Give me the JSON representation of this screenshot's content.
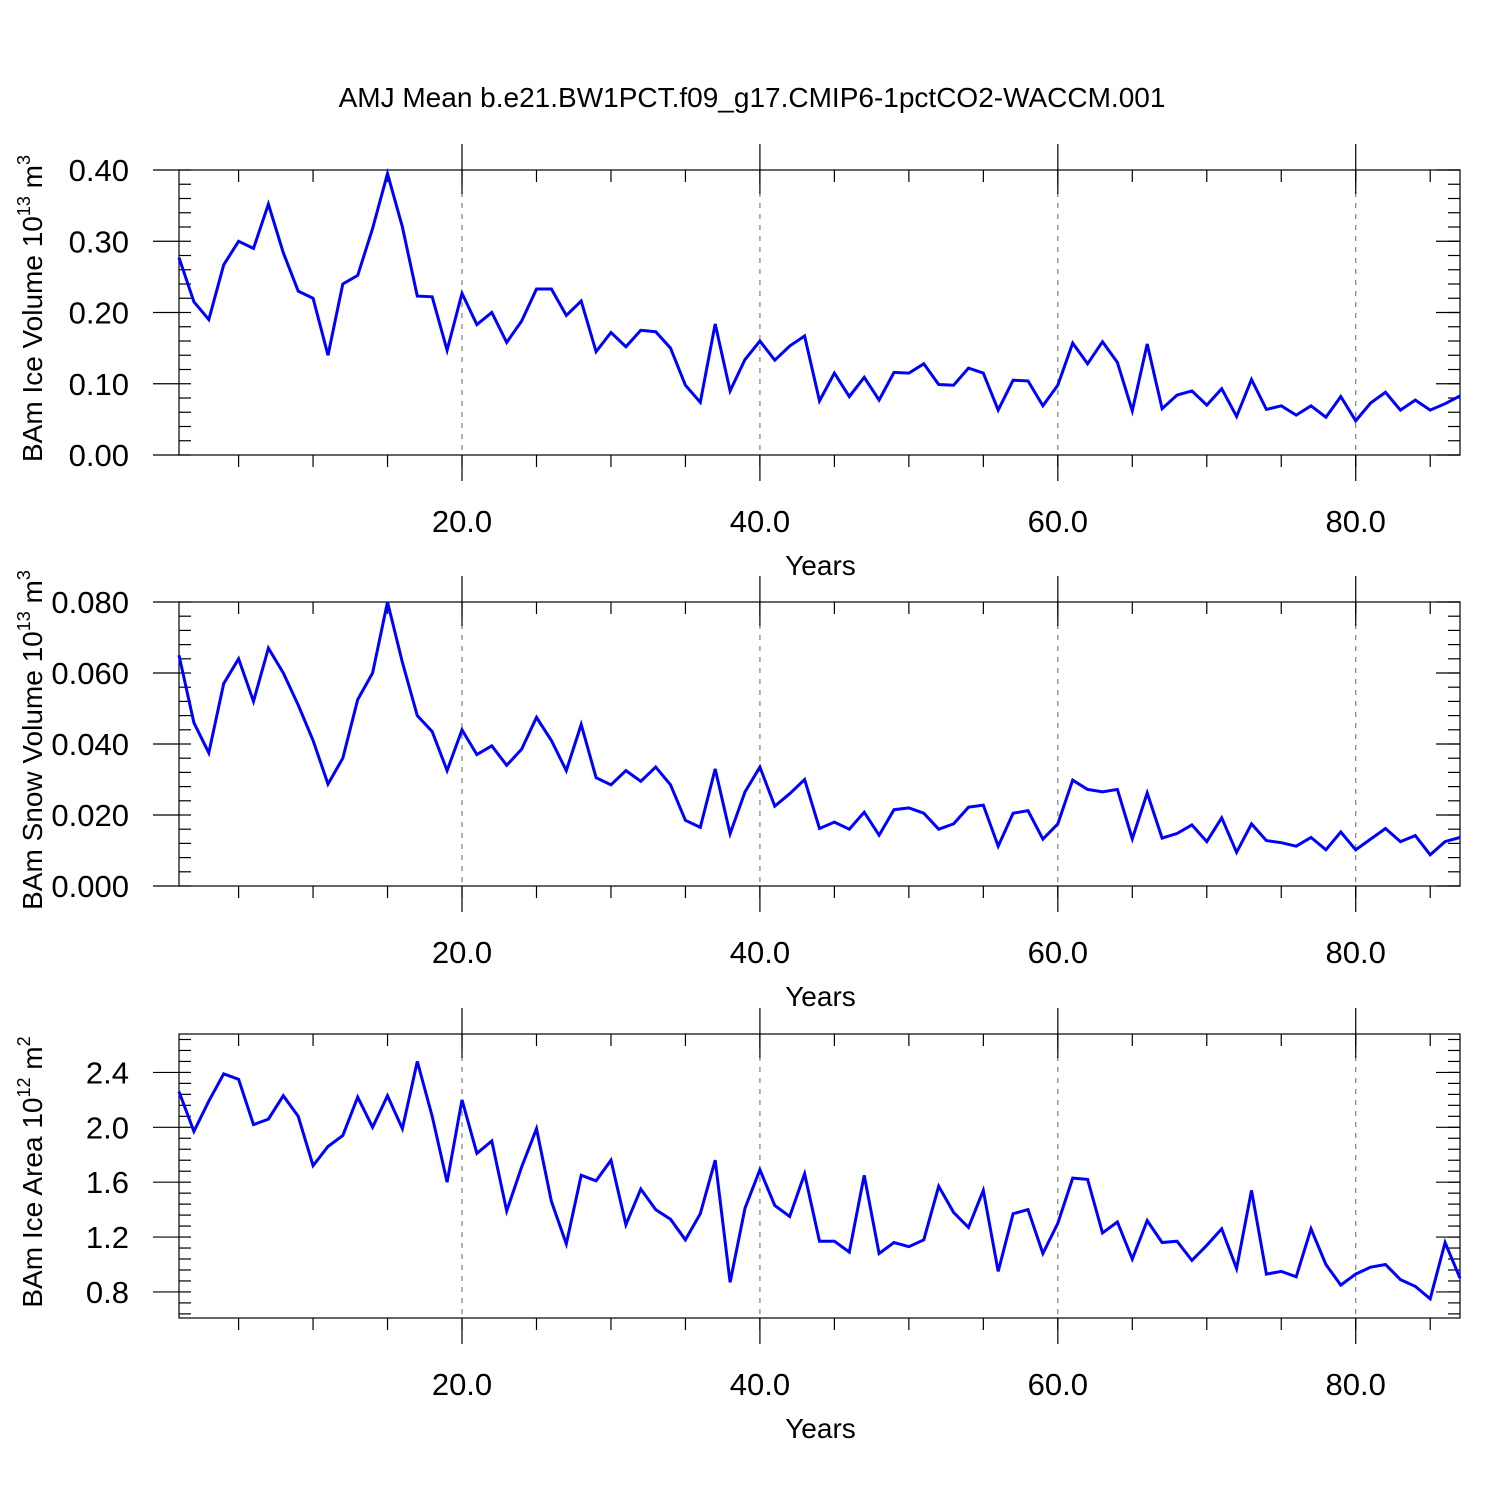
{
  "figure_title": "AMJ Mean b.e21.BW1PCT.f09_g17.CMIP6-1pctCO2-WACCM.001",
  "colors": {
    "line": "#0000ff",
    "axes": "#000000",
    "grid": "#808080"
  },
  "chart_data": [
    {
      "type": "line",
      "title": "",
      "xlabel": "Years",
      "ylabel": "BAm Ice Volume 10",
      "ylabel_exp": "13",
      "ylabel_unit": " m",
      "ylabel_unit_exp": "3",
      "xlim": [
        1,
        87
      ],
      "ylim": [
        0.0,
        0.4
      ],
      "x_ticks": [
        20.0,
        40.0,
        60.0,
        80.0
      ],
      "x_tick_labels": [
        "20.0",
        "40.0",
        "60.0",
        "80.0"
      ],
      "y_ticks": [
        0.0,
        0.1,
        0.2,
        0.3,
        0.4
      ],
      "y_tick_labels": [
        "0.00",
        "0.10",
        "0.20",
        "0.30",
        "0.40"
      ],
      "y_minor_step": 0.02,
      "vertical_grid": "dashed at major x ticks",
      "series": [
        {
          "color": "#0000ff",
          "values": [
            0.277,
            0.215,
            0.19,
            0.267,
            0.3,
            0.29,
            0.352,
            0.284,
            0.23,
            0.22,
            0.14,
            0.24,
            0.252,
            0.318,
            0.395,
            0.32,
            0.223,
            0.222,
            0.147,
            0.227,
            0.183,
            0.2,
            0.158,
            0.188,
            0.233,
            0.233,
            0.196,
            0.216,
            0.145,
            0.172,
            0.152,
            0.175,
            0.173,
            0.15,
            0.098,
            0.074,
            0.184,
            0.09,
            0.134,
            0.16,
            0.133,
            0.153,
            0.167,
            0.076,
            0.115,
            0.082,
            0.109,
            0.077,
            0.116,
            0.115,
            0.128,
            0.099,
            0.098,
            0.122,
            0.115,
            0.063,
            0.105,
            0.104,
            0.069,
            0.098,
            0.157,
            0.128,
            0.159,
            0.13,
            0.062,
            0.156,
            0.065,
            0.084,
            0.09,
            0.07,
            0.093,
            0.054,
            0.106,
            0.064,
            0.069,
            0.056,
            0.069,
            0.053,
            0.082,
            0.048,
            0.073,
            0.088,
            0.063,
            0.077,
            0.063,
            0.072,
            0.083
          ]
        }
      ]
    },
    {
      "type": "line",
      "title": "",
      "xlabel": "Years",
      "ylabel": "BAm Snow Volume 10",
      "ylabel_exp": "13",
      "ylabel_unit": " m",
      "ylabel_unit_exp": "3",
      "xlim": [
        1,
        87
      ],
      "ylim": [
        0.0,
        0.08
      ],
      "x_ticks": [
        20.0,
        40.0,
        60.0,
        80.0
      ],
      "x_tick_labels": [
        "20.0",
        "40.0",
        "60.0",
        "80.0"
      ],
      "y_ticks": [
        0.0,
        0.02,
        0.04,
        0.06,
        0.08
      ],
      "y_tick_labels": [
        "0.000",
        "0.020",
        "0.040",
        "0.060",
        "0.080"
      ],
      "y_minor_step": 0.004,
      "vertical_grid": "dashed at major x ticks",
      "series": [
        {
          "color": "#0000ff",
          "values": [
            0.065,
            0.046,
            0.0375,
            0.057,
            0.064,
            0.052,
            0.067,
            0.06,
            0.051,
            0.041,
            0.0287,
            0.036,
            0.0525,
            0.06,
            0.08,
            0.063,
            0.048,
            0.0435,
            0.0325,
            0.044,
            0.037,
            0.0395,
            0.034,
            0.0385,
            0.0475,
            0.041,
            0.0325,
            0.0455,
            0.0305,
            0.0285,
            0.0325,
            0.0295,
            0.0335,
            0.0285,
            0.0185,
            0.0165,
            0.033,
            0.0147,
            0.0265,
            0.0335,
            0.0225,
            0.026,
            0.03,
            0.0162,
            0.018,
            0.016,
            0.0208,
            0.0143,
            0.0215,
            0.022,
            0.0205,
            0.016,
            0.0175,
            0.0222,
            0.0228,
            0.0112,
            0.0205,
            0.0212,
            0.0132,
            0.0175,
            0.0298,
            0.0272,
            0.0265,
            0.0272,
            0.0133,
            0.0262,
            0.0135,
            0.0148,
            0.0172,
            0.0125,
            0.0192,
            0.0095,
            0.0175,
            0.0128,
            0.0122,
            0.0112,
            0.0137,
            0.0102,
            0.0152,
            0.0102,
            0.0132,
            0.0162,
            0.0125,
            0.0142,
            0.0088,
            0.0125,
            0.0137
          ]
        }
      ]
    },
    {
      "type": "line",
      "title": "",
      "xlabel": "Years",
      "ylabel": "BAm Ice Area 10",
      "ylabel_exp": "12",
      "ylabel_unit": " m",
      "ylabel_unit_exp": "2",
      "xlim": [
        1,
        87
      ],
      "ylim": [
        0.61,
        2.68
      ],
      "x_ticks": [
        20.0,
        40.0,
        60.0,
        80.0
      ],
      "x_tick_labels": [
        "20.0",
        "40.0",
        "60.0",
        "80.0"
      ],
      "y_ticks": [
        0.8,
        1.2,
        1.6,
        2.0,
        2.4
      ],
      "y_tick_labels": [
        "0.8",
        "1.2",
        "1.6",
        "2.0",
        "2.4"
      ],
      "y_minor_step": 0.08,
      "vertical_grid": "dashed at major x ticks",
      "series": [
        {
          "color": "#0000ff",
          "values": [
            2.26,
            1.97,
            2.19,
            2.39,
            2.35,
            2.02,
            2.06,
            2.23,
            2.08,
            1.72,
            1.86,
            1.94,
            2.22,
            2.0,
            2.23,
            1.99,
            2.48,
            2.08,
            1.6,
            2.2,
            1.81,
            1.9,
            1.39,
            1.71,
            1.99,
            1.46,
            1.15,
            1.65,
            1.61,
            1.76,
            1.29,
            1.55,
            1.4,
            1.33,
            1.18,
            1.37,
            1.76,
            0.87,
            1.41,
            1.69,
            1.43,
            1.35,
            1.66,
            1.17,
            1.17,
            1.09,
            1.65,
            1.08,
            1.16,
            1.13,
            1.18,
            1.57,
            1.38,
            1.27,
            1.54,
            0.95,
            1.37,
            1.4,
            1.08,
            1.3,
            1.63,
            1.62,
            1.23,
            1.31,
            1.04,
            1.32,
            1.16,
            1.17,
            1.03,
            1.14,
            1.26,
            0.97,
            1.54,
            0.93,
            0.95,
            0.91,
            1.26,
            1.0,
            0.85,
            0.93,
            0.98,
            1.0,
            0.89,
            0.84,
            0.75,
            1.16,
            0.9
          ]
        }
      ]
    }
  ]
}
